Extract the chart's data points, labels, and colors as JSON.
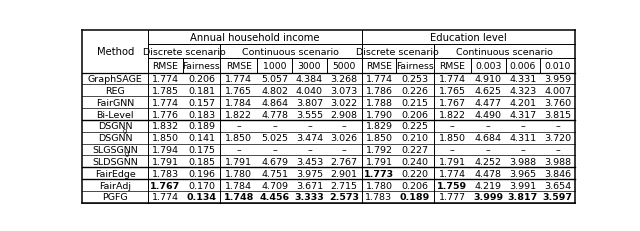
{
  "top_headers": [
    "Annual household income",
    "Education level"
  ],
  "sub_headers": [
    "Discrete scenario",
    "Continuous scenario",
    "Discrete scenario",
    "Continuous scenario"
  ],
  "col_labels": [
    "RMSE",
    "Fairness",
    "RMSE",
    "1000",
    "3000",
    "5000",
    "RMSE",
    "Fairness",
    "RMSE",
    "0.003",
    "0.006",
    "0.010"
  ],
  "rows": [
    [
      "GraphSAGE",
      "1.774",
      "0.206",
      "1.774",
      "5.057",
      "4.384",
      "3.268",
      "1.774",
      "0.253",
      "1.774",
      "4.910",
      "4.331",
      "3.959"
    ],
    [
      "REG",
      "1.785",
      "0.181",
      "1.765",
      "4.802",
      "4.040",
      "3.073",
      "1.786",
      "0.226",
      "1.765",
      "4.625",
      "4.323",
      "4.007"
    ],
    [
      "FairGNN",
      "1.774",
      "0.157",
      "1.784",
      "4.864",
      "3.807",
      "3.022",
      "1.788",
      "0.215",
      "1.767",
      "4.477",
      "4.201",
      "3.760"
    ],
    [
      "Bi-Level",
      "1.776",
      "0.183",
      "1.822",
      "4.778",
      "3.555",
      "2.908",
      "1.790",
      "0.206",
      "1.822",
      "4.490",
      "4.317",
      "3.815"
    ],
    [
      "DSGNN_g",
      "1.832",
      "0.189",
      "–",
      "–",
      "–",
      "–",
      "1.829",
      "0.225",
      "–",
      "–",
      "–",
      "–"
    ],
    [
      "DSGNN",
      "1.850",
      "0.141",
      "1.850",
      "5.025",
      "3.474",
      "3.026",
      "1.850",
      "0.210",
      "1.850",
      "4.684",
      "4.311",
      "3.720"
    ],
    [
      "SLGSGNN_g",
      "1.794",
      "0.175",
      "–",
      "–",
      "–",
      "–",
      "1.792",
      "0.227",
      "–",
      "–",
      "–",
      "–"
    ],
    [
      "SLDSGNN",
      "1.791",
      "0.185",
      "1.791",
      "4.679",
      "3.453",
      "2.767",
      "1.791",
      "0.240",
      "1.791",
      "4.252",
      "3.988",
      "3.988"
    ],
    [
      "FairEdge",
      "1.783",
      "0.196",
      "1.780",
      "4.751",
      "3.975",
      "2.901",
      "1.773",
      "0.220",
      "1.774",
      "4.478",
      "3.965",
      "3.846"
    ],
    [
      "FairAdj",
      "1.767",
      "0.170",
      "1.784",
      "4.709",
      "3.671",
      "2.715",
      "1.780",
      "0.206",
      "1.759",
      "4.219",
      "3.991",
      "3.654"
    ],
    [
      "PGFG",
      "1.774",
      "0.134",
      "1.748",
      "4.456",
      "3.333",
      "2.573",
      "1.783",
      "0.189",
      "1.777",
      "3.999",
      "3.817",
      "3.597"
    ]
  ],
  "bold": {
    "8,7": true,
    "9,1": true,
    "9,9": true,
    "10,2": true,
    "10,3": true,
    "10,4": true,
    "10,5": true,
    "10,6": true,
    "10,8": true,
    "10,10": true,
    "10,11": true,
    "10,12": true
  },
  "subscript_rows": [
    4,
    6
  ],
  "thick_after_rows": [
    3,
    7,
    8
  ],
  "col_widths_rel": [
    1.55,
    0.82,
    0.88,
    0.88,
    0.82,
    0.82,
    0.82,
    0.82,
    0.88,
    0.88,
    0.82,
    0.82,
    0.82
  ],
  "annual_span": [
    1,
    7
  ],
  "educ_span": [
    7,
    13
  ],
  "discrete1_span": [
    1,
    3
  ],
  "continuous1_span": [
    3,
    7
  ],
  "discrete2_span": [
    7,
    9
  ],
  "continuous2_span": [
    9,
    13
  ],
  "fs": 6.8,
  "hfs": 7.2
}
